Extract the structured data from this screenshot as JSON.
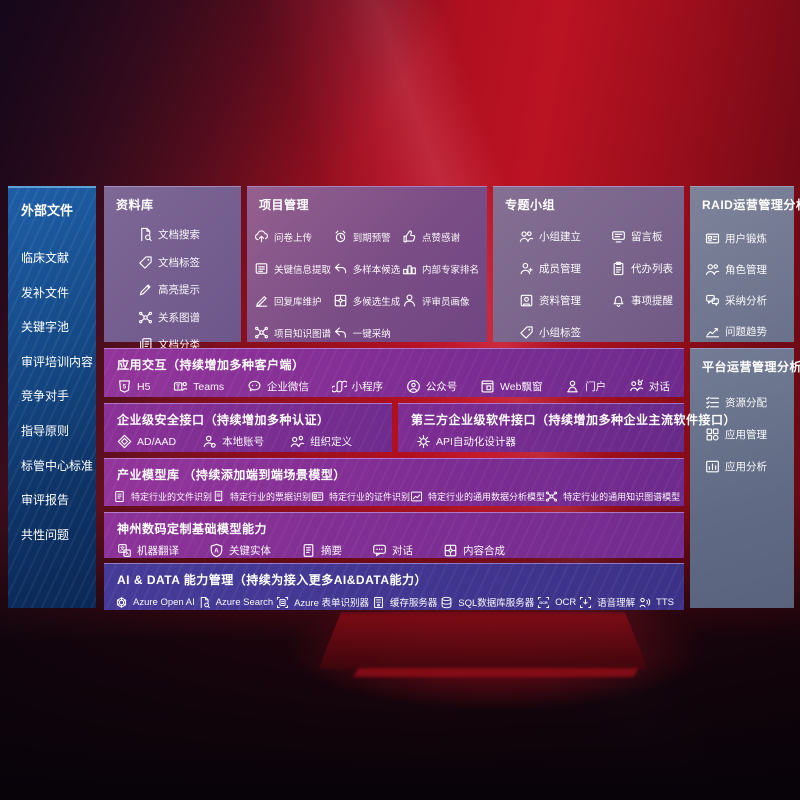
{
  "colors": {
    "accent_red": "#b01020",
    "sidebar_blue": "#154a88",
    "module_purple": "#7e2d93",
    "ai_indigo": "#3c3188",
    "ops_slate": "#6a718b"
  },
  "left_sidebar": {
    "title": "外部文件",
    "items": [
      "临床文献",
      "发补文件",
      "关键字池",
      "审评培训内容",
      "竞争对手",
      "指导原则",
      "标管中心标准",
      "审评报告",
      "共性问题"
    ]
  },
  "top_boxes": {
    "repository": {
      "title": "资料库",
      "items": [
        {
          "label": "文档搜索",
          "icon": "doc-search-icon"
        },
        {
          "label": "文档标签",
          "icon": "tag-icon"
        },
        {
          "label": "高亮提示",
          "icon": "highlighter-icon"
        },
        {
          "label": "关系图谱",
          "icon": "graph-icon"
        },
        {
          "label": "文档分类",
          "icon": "doc-copy-icon"
        }
      ]
    },
    "project": {
      "title": "项目管理",
      "items": [
        {
          "label": "问卷上传",
          "icon": "cloud-upload-icon"
        },
        {
          "label": "到期预警",
          "icon": "alarm-icon"
        },
        {
          "label": "点赞感谢",
          "icon": "thumbs-up-icon"
        },
        {
          "label": "关键信息提取",
          "icon": "doc-extract-icon"
        },
        {
          "label": "多样本候选",
          "icon": "reply-arrow-icon"
        },
        {
          "label": "内部专家排名",
          "icon": "podium-icon"
        },
        {
          "label": "回复库维护",
          "icon": "pen-icon"
        },
        {
          "label": "多候选生成",
          "icon": "puzzle-icon"
        },
        {
          "label": "评审员画像",
          "icon": "person-icon"
        },
        {
          "label": "项目知识图谱",
          "icon": "graph-icon"
        },
        {
          "label": "一键采纳",
          "icon": "adopt-arrow-icon"
        }
      ]
    },
    "groups": {
      "title": "专题小组",
      "items": [
        {
          "label": "小组建立",
          "icon": "group-icon"
        },
        {
          "label": "留言板",
          "icon": "message-board-icon"
        },
        {
          "label": "成员管理",
          "icon": "member-add-icon"
        },
        {
          "label": "代办列表",
          "icon": "clipboard-icon"
        },
        {
          "label": "资料管理",
          "icon": "album-icon"
        },
        {
          "label": "事项提醒",
          "icon": "bell-icon"
        },
        {
          "label": "小组标签",
          "icon": "tag-icon"
        }
      ]
    }
  },
  "right_boxes": {
    "raid": {
      "title": "RAID运营管理分析",
      "items": [
        {
          "label": "用户锻炼",
          "icon": "id-card-icon"
        },
        {
          "label": "角色管理",
          "icon": "role-icon"
        },
        {
          "label": "采纳分析",
          "icon": "chat-qa-icon"
        },
        {
          "label": "问题趋势",
          "icon": "trend-icon"
        }
      ]
    },
    "platform": {
      "title": "平台运营管理分析",
      "items": [
        {
          "label": "资源分配",
          "icon": "alloc-list-icon"
        },
        {
          "label": "应用管理",
          "icon": "app-grid-icon"
        },
        {
          "label": "应用分析",
          "icon": "app-analysis-icon"
        }
      ]
    }
  },
  "rows": {
    "interaction": {
      "title": "应用交互（持续增加多种客户端）",
      "items": [
        {
          "label": "H5",
          "icon": "h5-icon"
        },
        {
          "label": "Teams",
          "icon": "teams-icon"
        },
        {
          "label": "企业微信",
          "icon": "wechat-work-icon"
        },
        {
          "label": "小程序",
          "icon": "miniprogram-icon"
        },
        {
          "label": "公众号",
          "icon": "official-account-icon"
        },
        {
          "label": "Web飘窗",
          "icon": "web-window-icon"
        },
        {
          "label": "门户",
          "icon": "portal-icon"
        },
        {
          "label": "对话",
          "icon": "dialog-icon"
        }
      ]
    },
    "security": {
      "title": "企业级安全接口（持续增加多种认证）",
      "items": [
        {
          "label": "AD/AAD",
          "icon": "ad-diamond-icon"
        },
        {
          "label": "本地账号",
          "icon": "local-account-icon"
        },
        {
          "label": "组织定义",
          "icon": "org-icon"
        }
      ]
    },
    "thirdparty": {
      "title": "第三方企业级软件接口（持续增加多种企业主流软件接口）",
      "items": [
        {
          "label": "API自动化设计器",
          "icon": "api-gear-icon"
        }
      ]
    },
    "industry_models": {
      "title": "产业模型库 （持续添加端到端场景模型）",
      "items": [
        {
          "label": "特定行业的文件识别",
          "icon": "doc-recognition-icon"
        },
        {
          "label": "特定行业的票据识别",
          "icon": "receipt-icon"
        },
        {
          "label": "特定行业的证件识别",
          "icon": "id-card-icon"
        },
        {
          "label": "特定行业的通用数据分析模型",
          "icon": "data-model-icon"
        },
        {
          "label": "特定行业的通用知识图谱模型",
          "icon": "knowledge-graph-icon"
        }
      ]
    },
    "base_models": {
      "title": "神州数码定制基础模型能力",
      "items": [
        {
          "label": "机器翻译",
          "icon": "translate-icon"
        },
        {
          "label": "关键实体",
          "icon": "entity-shield-icon"
        },
        {
          "label": "摘要",
          "icon": "summary-doc-icon"
        },
        {
          "label": "对话",
          "icon": "chat-icon"
        },
        {
          "label": "内容合成",
          "icon": "compose-puzzle-icon"
        }
      ]
    },
    "ai_data": {
      "title": "AI & DATA 能力管理（持续为接入更多AI&DATA能力）",
      "items": [
        {
          "label": "Azure Open AI",
          "icon": "openai-icon"
        },
        {
          "label": "Azure Search",
          "icon": "azure-search-icon"
        },
        {
          "label": "Azure 表单识别器",
          "icon": "form-recognizer-icon"
        },
        {
          "label": "缓存服务器",
          "icon": "cache-server-icon"
        },
        {
          "label": "SQL数据库服务器",
          "icon": "sql-db-icon"
        },
        {
          "label": "OCR",
          "icon": "ocr-icon"
        },
        {
          "label": "语音理解",
          "icon": "speech-icon"
        },
        {
          "label": "TTS",
          "icon": "tts-icon"
        }
      ]
    }
  }
}
